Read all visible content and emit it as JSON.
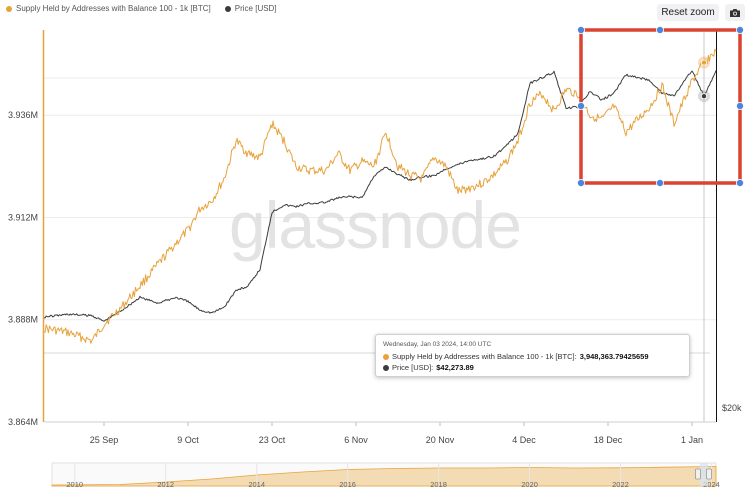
{
  "toolbar": {
    "reset_label": "Reset zoom",
    "camera_icon": "camera-icon"
  },
  "watermark": "glassnode",
  "colors": {
    "supply": "#e8a23c",
    "price": "#3c3c3c",
    "highlight_box": "#d94330",
    "handle": "#4a86e0"
  },
  "tooltip": {
    "date": "Wednesday, Jan 03 2024, 14:00 UTC",
    "supply_label": "Supply Held by Addresses with Balance 100 - 1k [BTC]:",
    "supply_value": "3,948,363.79425659",
    "price_label": "Price [USD]:",
    "price_value": "$42,273.89"
  },
  "chart_data": {
    "type": "line",
    "legend": [
      "Supply Held by Addresses with Balance 100 - 1k [BTC]",
      "Price [USD]"
    ],
    "y_left_ticks": [
      "3.936M",
      "3.912M",
      "3.888M",
      "3.864M"
    ],
    "y_left_values": [
      3936000,
      3912000,
      3888000,
      3864000
    ],
    "y_right_ticks": [
      "$20k"
    ],
    "x_ticks": [
      "25 Sep",
      "9 Oct",
      "23 Oct",
      "6 Nov",
      "20 Nov",
      "4 Dec",
      "18 Dec",
      "1 Jan"
    ],
    "navigator_ticks": [
      "2010",
      "2012",
      "2014",
      "2016",
      "2018",
      "2020",
      "2022",
      "2024"
    ],
    "x_range": [
      "2023-09-15",
      "2024-01-05"
    ],
    "ylim": [
      3864000,
      3956000
    ],
    "price_ylim": [
      19000,
      47000
    ],
    "grid": true,
    "legend_position": "top-left",
    "series": [
      {
        "name": "Supply Held by Addresses with Balance 100 - 1k [BTC]",
        "dates": [
          "2023-09-15",
          "2023-09-19",
          "2023-09-23",
          "2023-09-25",
          "2023-09-28",
          "2023-10-01",
          "2023-10-04",
          "2023-10-07",
          "2023-10-09",
          "2023-10-11",
          "2023-10-13",
          "2023-10-15",
          "2023-10-17",
          "2023-10-19",
          "2023-10-21",
          "2023-10-23",
          "2023-10-25",
          "2023-10-27",
          "2023-10-29",
          "2023-11-01",
          "2023-11-03",
          "2023-11-05",
          "2023-11-07",
          "2023-11-09",
          "2023-11-11",
          "2023-11-13",
          "2023-11-15",
          "2023-11-17",
          "2023-11-19",
          "2023-11-21",
          "2023-11-23",
          "2023-11-25",
          "2023-11-27",
          "2023-11-29",
          "2023-12-01",
          "2023-12-03",
          "2023-12-05",
          "2023-12-07",
          "2023-12-09",
          "2023-12-11",
          "2023-12-13",
          "2023-12-15",
          "2023-12-17",
          "2023-12-19",
          "2023-12-21",
          "2023-12-23",
          "2023-12-25",
          "2023-12-27",
          "2023-12-29",
          "2024-01-01",
          "2024-01-03",
          "2024-01-05"
        ],
        "values": [
          3886000,
          3885000,
          3883000,
          3887000,
          3891000,
          3896000,
          3901000,
          3906000,
          3909000,
          3914000,
          3916000,
          3921000,
          3930000,
          3927000,
          3926000,
          3934000,
          3930000,
          3924000,
          3923000,
          3923000,
          3927000,
          3923000,
          3925000,
          3924000,
          3932000,
          3924000,
          3922000,
          3921000,
          3926000,
          3924000,
          3918000,
          3919000,
          3920000,
          3922000,
          3925000,
          3930000,
          3939000,
          3941000,
          3937000,
          3942000,
          3941000,
          3936000,
          3935000,
          3938000,
          3932000,
          3935000,
          3938000,
          3943000,
          3934000,
          3944000,
          3948363.79,
          3951000
        ]
      },
      {
        "name": "Price [USD]",
        "dates": [
          "2023-09-15",
          "2023-09-19",
          "2023-09-23",
          "2023-09-25",
          "2023-09-28",
          "2023-10-01",
          "2023-10-04",
          "2023-10-07",
          "2023-10-09",
          "2023-10-11",
          "2023-10-13",
          "2023-10-15",
          "2023-10-17",
          "2023-10-19",
          "2023-10-21",
          "2023-10-23",
          "2023-10-25",
          "2023-10-27",
          "2023-10-29",
          "2023-11-01",
          "2023-11-03",
          "2023-11-05",
          "2023-11-07",
          "2023-11-09",
          "2023-11-11",
          "2023-11-13",
          "2023-11-15",
          "2023-11-17",
          "2023-11-19",
          "2023-11-21",
          "2023-11-23",
          "2023-11-25",
          "2023-11-27",
          "2023-11-29",
          "2023-12-01",
          "2023-12-03",
          "2023-12-05",
          "2023-12-07",
          "2023-12-09",
          "2023-12-11",
          "2023-12-13",
          "2023-12-15",
          "2023-12-17",
          "2023-12-19",
          "2023-12-21",
          "2023-12-23",
          "2023-12-25",
          "2023-12-27",
          "2023-12-29",
          "2024-01-01",
          "2024-01-03",
          "2024-01-05"
        ],
        "values": [
          26500,
          26700,
          26600,
          26200,
          27000,
          27900,
          27500,
          27900,
          27600,
          27000,
          26800,
          27200,
          28400,
          28700,
          29900,
          34000,
          34500,
          34400,
          34600,
          34700,
          35000,
          35100,
          35000,
          36600,
          37200,
          36700,
          36300,
          36500,
          36600,
          37100,
          37400,
          37700,
          37800,
          38000,
          38700,
          39600,
          43200,
          43600,
          44000,
          41400,
          41500,
          42600,
          42000,
          42500,
          43800,
          43600,
          43400,
          42500,
          42300,
          44100,
          42273.89,
          44100
        ]
      }
    ]
  }
}
